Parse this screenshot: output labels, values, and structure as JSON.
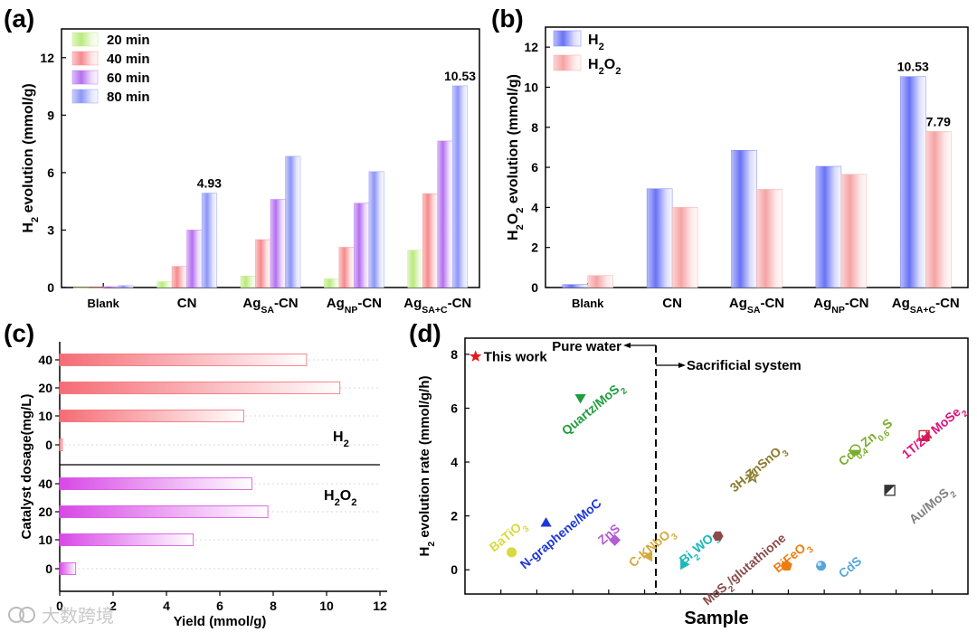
{
  "chart_data": [
    {
      "panel": "(a)",
      "type": "bar",
      "ylabel_main": "H",
      "ylabel_sub": "2",
      "ylabel_rest": " evolution (mmol/g)",
      "ylim": [
        0,
        13.5
      ],
      "yticks": [
        0,
        3,
        6,
        9,
        12
      ],
      "categories": [
        {
          "main": "Blank",
          "sub": ""
        },
        {
          "main": "CN",
          "sub": ""
        },
        {
          "main": "Ag",
          "sub": "SA",
          "rest": "-CN"
        },
        {
          "main": "Ag",
          "sub": "NP",
          "rest": "-CN"
        },
        {
          "main": "Ag",
          "sub": "SA+C",
          "rest": "-CN"
        }
      ],
      "series": [
        {
          "name": "20  min",
          "color": "#b9ea7c",
          "values": [
            0.0,
            0.3,
            0.6,
            0.45,
            1.95
          ]
        },
        {
          "name": "40  min",
          "color": "#f6898c",
          "values": [
            0.0,
            1.1,
            2.5,
            2.1,
            4.9
          ]
        },
        {
          "name": "60  min",
          "color": "#b46ff0",
          "values": [
            0.05,
            3.0,
            4.6,
            4.4,
            7.65
          ]
        },
        {
          "name": "80  min",
          "color": "#8c95f6",
          "values": [
            0.1,
            4.93,
            6.85,
            6.05,
            10.53
          ]
        }
      ],
      "annotations": [
        {
          "text": "4.93",
          "series": 3,
          "category": 1
        },
        {
          "text": "10.53",
          "series": 3,
          "category": 4
        }
      ],
      "legend": "top-left"
    },
    {
      "panel": "(b)",
      "type": "bar",
      "ylabel_main": "H",
      "ylabel_sub": "2",
      "ylabel_main2": "O",
      "ylabel_sub2": "2",
      "ylabel_rest": " evolution (mmol/g)",
      "ylim": [
        0,
        13
      ],
      "yticks": [
        0,
        2,
        4,
        6,
        8,
        10,
        12
      ],
      "categories": [
        {
          "main": "Blank",
          "sub": ""
        },
        {
          "main": "CN",
          "sub": ""
        },
        {
          "main": "Ag",
          "sub": "SA",
          "rest": "-CN"
        },
        {
          "main": "Ag",
          "sub": "NP",
          "rest": "-CN"
        },
        {
          "main": "Ag",
          "sub": "SA+C",
          "rest": "-CN"
        }
      ],
      "series": [
        {
          "name_main": "H",
          "name_sub": "2",
          "name_main2": "",
          "name_sub2": "",
          "color": "#6872f5",
          "values": [
            0.15,
            4.93,
            6.85,
            6.05,
            10.53
          ]
        },
        {
          "name_main": "H",
          "name_sub": "2",
          "name_main2": "O",
          "name_sub2": "2",
          "color": "#f6a3a3",
          "values": [
            0.6,
            4.0,
            4.9,
            5.65,
            7.79
          ]
        }
      ],
      "annotations": [
        {
          "text": "10.53",
          "series": 0,
          "category": 4
        },
        {
          "text": "7.79",
          "series": 1,
          "category": 4
        }
      ],
      "legend": "top-left"
    },
    {
      "panel": "(c)",
      "type": "bar",
      "orientation": "horizontal",
      "ylabel": "Catalyst dosage(mg/L)",
      "xlabel": "Yield (mmol/g)",
      "xlim": [
        0,
        12
      ],
      "xticks": [
        0,
        2,
        4,
        6,
        8,
        10,
        12
      ],
      "groups": [
        {
          "label_main": "H",
          "label_sub": "2",
          "label_main2": "",
          "label_sub2": "",
          "color": "#f56c74",
          "categories": [
            "40",
            "20",
            "10",
            "0"
          ],
          "values": [
            9.25,
            10.5,
            6.9,
            0.1
          ]
        },
        {
          "label_main": "H",
          "label_sub": "2",
          "label_main2": "O",
          "label_sub2": "2",
          "color": "#d848e6",
          "categories": [
            "40",
            "20",
            "10",
            "0"
          ],
          "values": [
            7.2,
            7.8,
            5.0,
            0.6
          ]
        }
      ]
    },
    {
      "panel": "(d)",
      "type": "scatter",
      "ylabel": "H",
      "ylabel_sub": "2",
      "ylabel_rest": " evolution rate (mmol/g/h)",
      "xlabel": "Sample",
      "ylim": [
        -0.9,
        8.6
      ],
      "yticks": [
        0,
        2,
        4,
        6,
        8
      ],
      "xlim": [
        0,
        14
      ],
      "divider_x": 5.5,
      "region_left": "Pure water",
      "region_right": "Sacrificial system",
      "points": [
        {
          "label": "This work",
          "x": 0.15,
          "y": 7.92,
          "marker": "star",
          "color": "#e31a1c"
        },
        {
          "label_parts": [
            [
              "Quartz/MoS",
              ""
            ],
            [
              "2",
              "sub"
            ]
          ],
          "x": 3.2,
          "y": 6.4,
          "marker": "triangle-down",
          "color": "#1e9e3c"
        },
        {
          "label_parts": [
            [
              "BaTiO",
              ""
            ],
            [
              "3",
              "sub"
            ]
          ],
          "x": 1.2,
          "y": 0.65,
          "marker": "circle",
          "color": "#d9d93a"
        },
        {
          "label_parts": [
            [
              "N-graphene/MoC",
              ""
            ]
          ],
          "x": 2.2,
          "y": 1.72,
          "marker": "triangle-up",
          "color": "#1d36d8"
        },
        {
          "label_parts": [
            [
              "ZnS",
              ""
            ]
          ],
          "x": 4.2,
          "y": 1.1,
          "marker": "diamond",
          "color": "#b45cd6"
        },
        {
          "label_parts": [
            [
              "C-KNbO",
              ""
            ],
            [
              "3",
              "sub"
            ]
          ],
          "x": 5.2,
          "y": 0.5,
          "marker": "triangle-left",
          "color": "#d3aa3c"
        },
        {
          "label_parts": [
            [
              "Bi",
              ""
            ],
            [
              "2",
              "sub"
            ],
            [
              "WO",
              ""
            ],
            [
              "3",
              "sub"
            ]
          ],
          "x": 6.2,
          "y": 0.2,
          "marker": "triangle-right",
          "color": "#1ab8b8"
        },
        {
          "label_parts": [
            [
              "MoS",
              ""
            ],
            [
              "2",
              "sub"
            ],
            [
              "/glutathione",
              ""
            ]
          ],
          "x": 7.2,
          "y": 1.25,
          "marker": "hexagon",
          "color": "#8b4a4a"
        },
        {
          "label_parts": [
            [
              "3H-ZnSnO",
              ""
            ],
            [
              "3",
              "sub"
            ]
          ],
          "x": 8.2,
          "y": 3.45,
          "marker": "star-open",
          "color": "#8b7a2a"
        },
        {
          "label_parts": [
            [
              "BiFeO",
              ""
            ],
            [
              "3",
              "sub"
            ]
          ],
          "x": 9.2,
          "y": 0.15,
          "marker": "pentagon",
          "color": "#ee7d10"
        },
        {
          "label_parts": [
            [
              "CdS",
              ""
            ]
          ],
          "x": 10.2,
          "y": 0.15,
          "marker": "circle-shaded",
          "color": "#58a6dc"
        },
        {
          "label_parts": [
            [
              "Cd",
              ""
            ],
            [
              "0.4",
              "sub"
            ],
            [
              "Zn",
              ""
            ],
            [
              "0.6",
              "sub"
            ],
            [
              "S",
              ""
            ]
          ],
          "x": 11.2,
          "y": 4.45,
          "marker": "circle-half",
          "color": "#7aae2a"
        },
        {
          "label_parts": [
            [
              "Au/MoS",
              ""
            ],
            [
              "2",
              "sub"
            ]
          ],
          "x": 12.2,
          "y": 2.95,
          "marker": "square-half",
          "color": "#808080"
        },
        {
          "label_parts": [
            [
              "1T/2H MoSe",
              ""
            ],
            [
              "2",
              "sub"
            ]
          ],
          "x": 13.2,
          "y": 4.98,
          "marker": "square-half-red",
          "color": "#e0127a"
        }
      ]
    }
  ],
  "watermark": "大数跨境"
}
